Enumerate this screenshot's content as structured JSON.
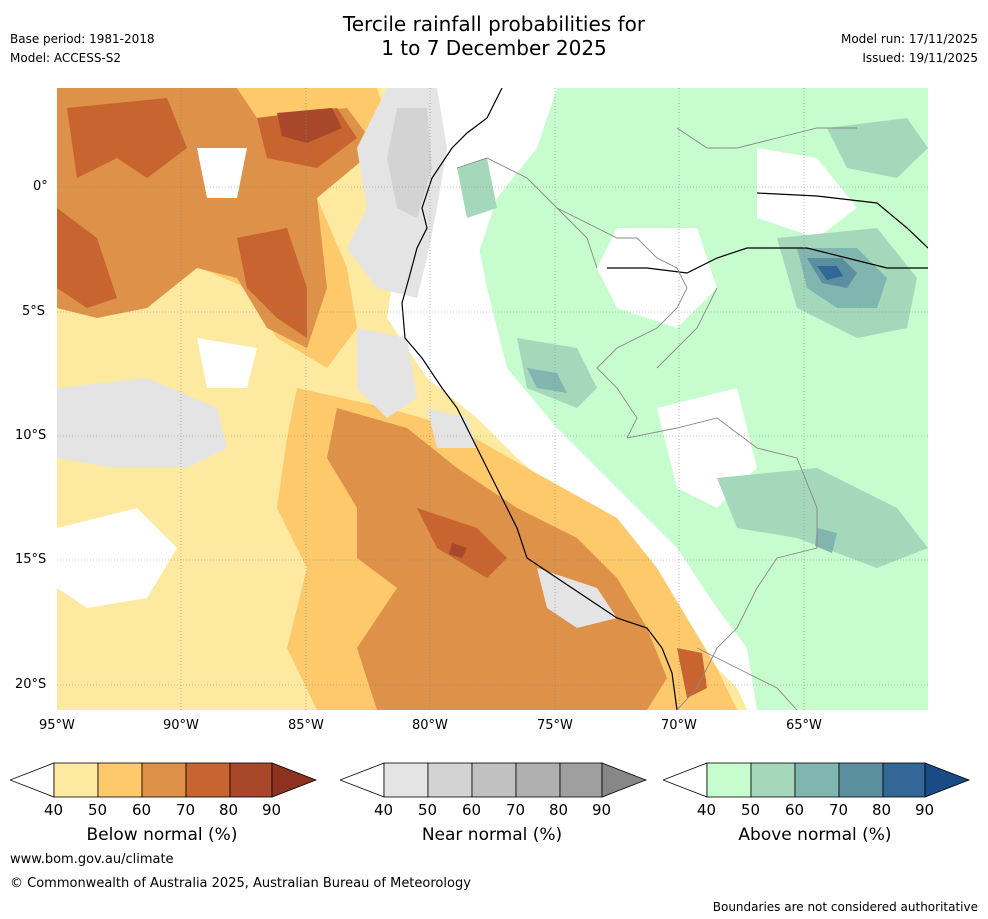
{
  "title": {
    "line1": "Tercile rainfall probabilities for",
    "line2": "1 to 7 December 2025"
  },
  "meta": {
    "base_period": "Base period: 1981-2018",
    "model": "Model: ACCESS-S2",
    "model_run": "Model run: 17/11/2025",
    "issued": "Issued: 19/11/2025"
  },
  "map": {
    "x_ticks": [
      "95°W",
      "90°W",
      "85°W",
      "80°W",
      "75°W",
      "70°W",
      "65°W"
    ],
    "y_ticks": [
      "0°",
      "5°S",
      "10°S",
      "15°S",
      "20°S"
    ],
    "lon_range": [
      -95,
      -60
    ],
    "lat_range": [
      -21,
      4
    ],
    "land_color": "#ffffff",
    "border_color": "#888888",
    "coast_color": "#000000"
  },
  "colorbars": {
    "below": {
      "label": "Below normal (%)",
      "ticks": [
        "40",
        "50",
        "60",
        "70",
        "80",
        "90"
      ],
      "colors": [
        "#ffffff",
        "#fde9a0",
        "#fdc96a",
        "#de9148",
        "#c8642f",
        "#a8472a",
        "#8e321f"
      ]
    },
    "near": {
      "label": "Near normal (%)",
      "ticks": [
        "40",
        "50",
        "60",
        "70",
        "80",
        "90"
      ],
      "colors": [
        "#ffffff",
        "#e4e4e4",
        "#d3d3d3",
        "#c1c1c1",
        "#b0b0b0",
        "#9f9f9f",
        "#878787"
      ]
    },
    "above": {
      "label": "Above normal (%)",
      "ticks": [
        "40",
        "50",
        "60",
        "70",
        "80",
        "90"
      ],
      "colors": [
        "#ffffff",
        "#c7fcce",
        "#a5d8bb",
        "#81b6b0",
        "#5b8fa0",
        "#336896",
        "#1b4b87"
      ]
    }
  },
  "footer": {
    "url": "www.bom.gov.au/climate",
    "copyright": "© Commonwealth of Australia 2025, Australian Bureau of Meteorology",
    "disclaimer": "Boundaries are not considered authoritative"
  }
}
